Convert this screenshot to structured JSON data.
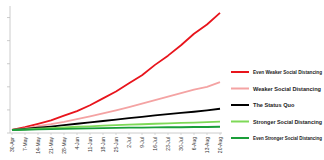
{
  "chart_data": {
    "type": "line",
    "categories": [
      "30-Apr",
      "7-May",
      "14-May",
      "21-May",
      "28-May",
      "4-Jun",
      "11-Jun",
      "18-Jun",
      "25-Jun",
      "2-Jul",
      "9-Jul",
      "16-Jul",
      "23-Jul",
      "30-Jul",
      "6-Aug",
      "13-Aug",
      "20-Aug"
    ],
    "series": [
      {
        "name": "Even Weaker Social Distancing",
        "color": "#e8141c",
        "values": [
          0.13,
          0.25,
          0.4,
          0.55,
          0.75,
          0.95,
          1.2,
          1.5,
          1.8,
          2.15,
          2.5,
          2.95,
          3.35,
          3.8,
          4.3,
          4.7,
          5.2
        ]
      },
      {
        "name": "Weaker Social Distancing",
        "color": "#f4a3a3",
        "values": [
          0.13,
          0.2,
          0.3,
          0.38,
          0.48,
          0.6,
          0.72,
          0.85,
          0.98,
          1.12,
          1.27,
          1.42,
          1.58,
          1.73,
          1.88,
          2.0,
          2.2
        ]
      },
      {
        "name": "The Status Quo",
        "color": "#000000",
        "values": [
          0.13,
          0.18,
          0.23,
          0.28,
          0.34,
          0.4,
          0.46,
          0.52,
          0.58,
          0.64,
          0.7,
          0.76,
          0.82,
          0.87,
          0.92,
          0.98,
          1.05
        ]
      },
      {
        "name": "Stronger Social Distancing",
        "color": "#7ed957",
        "values": [
          0.13,
          0.16,
          0.19,
          0.21,
          0.24,
          0.27,
          0.29,
          0.32,
          0.34,
          0.36,
          0.38,
          0.4,
          0.42,
          0.44,
          0.45,
          0.47,
          0.49
        ]
      },
      {
        "name": "Even Stronger Social Distancing",
        "color": "#1a9e3a",
        "values": [
          0.13,
          0.14,
          0.16,
          0.17,
          0.18,
          0.19,
          0.2,
          0.21,
          0.22,
          0.23,
          0.23,
          0.24,
          0.25,
          0.25,
          0.26,
          0.26,
          0.27
        ]
      }
    ],
    "ylim": [
      0,
      5.5
    ],
    "yticks": [
      0,
      1,
      2,
      3,
      4,
      5
    ],
    "tick_labels": "x",
    "legend": "right"
  }
}
